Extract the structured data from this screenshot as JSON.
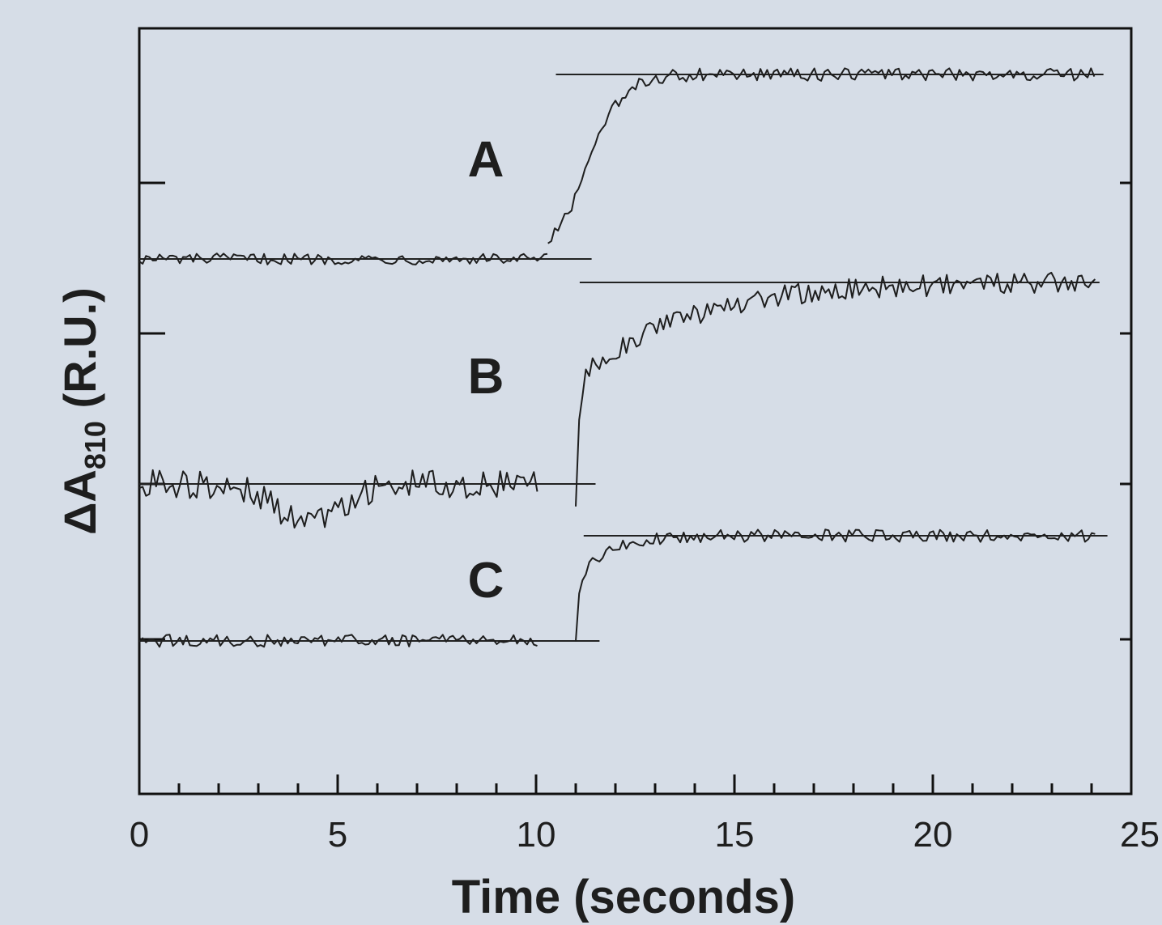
{
  "chart_data": {
    "type": "line",
    "xlabel": "Time  (seconds)",
    "ylabel_main": "ΔA",
    "ylabel_sub": "810",
    "ylabel_unit": " (R.U.)",
    "xlim": [
      0,
      25
    ],
    "x_ticks": [
      0,
      5,
      10,
      15,
      20,
      25
    ],
    "x_tick_labels": [
      "0",
      "5",
      "10",
      "15",
      "20",
      "25"
    ],
    "minor_x_step": 1,
    "colors": {
      "background": "#d6dde7",
      "ink": "#1e1e1e",
      "frame": "#111111"
    },
    "series": [
      {
        "name": "A",
        "segments": [
          {
            "t_start": 0.0,
            "t_end": 10.3,
            "level": 0.0,
            "noise": 0.03
          },
          {
            "t_start": 10.3,
            "t_end": 24.1,
            "level_start": 0.0,
            "level_end": 1.0,
            "rise": "sigmoid",
            "rise_mid": 11.3,
            "rise_width": 0.45,
            "noise": 0.035
          }
        ],
        "baselines": [
          {
            "t_start": 0.0,
            "t_end": 11.4,
            "level": 0.0
          },
          {
            "t_start": 10.5,
            "t_end": 24.3,
            "level": 1.0
          }
        ]
      },
      {
        "name": "B",
        "segments": [
          {
            "t_start": 0.0,
            "t_end": 10.1,
            "level": 0.0,
            "noise": 0.07,
            "dip_center": 4.2,
            "dip_depth": 0.18,
            "dip_width": 1.2
          },
          {
            "t_start": 11.0,
            "t_end": 24.1,
            "level_start": -0.1,
            "level_end": 1.0,
            "rise": "exponential",
            "rise_tau": 2.6,
            "rise_jump": 0.55,
            "noise": 0.055
          }
        ],
        "baselines": [
          {
            "t_start": 0.0,
            "t_end": 11.5,
            "level": 0.0
          },
          {
            "t_start": 11.1,
            "t_end": 24.2,
            "level": 1.0
          }
        ]
      },
      {
        "name": "C",
        "segments": [
          {
            "t_start": 0.0,
            "t_end": 10.1,
            "level": 0.0,
            "noise": 0.06
          },
          {
            "t_start": 11.0,
            "t_end": 24.1,
            "level_start": 0.0,
            "level_end": 1.0,
            "rise": "exponential",
            "rise_tau": 0.8,
            "rise_jump": 0.55,
            "noise": 0.06
          }
        ],
        "baselines": [
          {
            "t_start": 0.0,
            "t_end": 11.6,
            "level": 0.0
          },
          {
            "t_start": 11.2,
            "t_end": 24.4,
            "level": 1.0
          }
        ]
      }
    ]
  }
}
